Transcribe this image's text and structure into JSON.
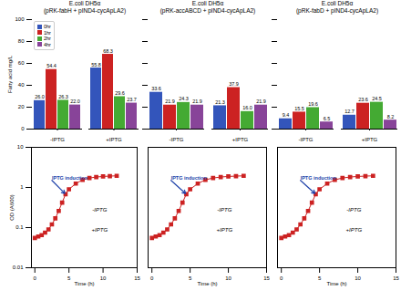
{
  "chart_data": [
    {
      "type": "bar",
      "title": "E.coli DH5α\n(pRK-fabH + pIND4-cycApLA2)",
      "categories": [
        "-IPTG",
        "+IPTG"
      ],
      "series": [
        {
          "name": "0hr",
          "color": "#3355bb",
          "values": [
            26.0,
            55.8
          ],
          "value_labels": [
            "26.0",
            "55.8"
          ]
        },
        {
          "name": "1hr",
          "color": "#cc2222",
          "values": [
            54.4,
            68.3
          ],
          "value_labels": [
            "54.4",
            "68.3"
          ]
        },
        {
          "name": "2hr",
          "color": "#44aa33",
          "values": [
            26.3,
            29.6
          ],
          "value_labels": [
            "26.3",
            "29.6"
          ]
        },
        {
          "name": "4hr",
          "color": "#884499",
          "values": [
            22.0,
            23.7
          ],
          "value_labels": [
            "22.0",
            "23.7"
          ]
        }
      ],
      "y_label": "Fatty acid mg/L",
      "ylim": [
        0,
        100
      ],
      "yticks": [
        0,
        20,
        40,
        60,
        80,
        100
      ],
      "data_labels": true,
      "legend": "upper left"
    },
    {
      "type": "bar",
      "title": "E.coli DH5α\n(pRK-accABCD + pIND4-cycApLA2)",
      "categories": [
        "-IPTG",
        "+IPTG"
      ],
      "series": [
        {
          "name": "0hr",
          "color": "#3355bb",
          "values": [
            33.6,
            21.3
          ],
          "value_labels": [
            "33.6",
            "21.3"
          ]
        },
        {
          "name": "1hr",
          "color": "#cc2222",
          "values": [
            21.9,
            37.9
          ],
          "value_labels": [
            "21.9",
            "37.9"
          ]
        },
        {
          "name": "2hr",
          "color": "#44aa33",
          "values": [
            24.3,
            16.0
          ],
          "value_labels": [
            "24.3",
            "16.0"
          ]
        },
        {
          "name": "4hr",
          "color": "#884499",
          "values": [
            21.9,
            21.9
          ],
          "value_labels": [
            "21.9",
            "21.9"
          ]
        }
      ],
      "ylim": [
        0,
        100
      ],
      "yticks": [
        0,
        20,
        40,
        60,
        80,
        100
      ],
      "data_labels": true,
      "tick_labels": "x"
    },
    {
      "type": "bar",
      "title": "E.coli DH5α\n(pRK-fabD + pIND4-cycApLA2)",
      "categories": [
        "-IPTG",
        "+IPTG"
      ],
      "series": [
        {
          "name": "0hr",
          "color": "#3355bb",
          "values": [
            9.4,
            12.7
          ],
          "value_labels": [
            "9.4",
            "12.7"
          ]
        },
        {
          "name": "1hr",
          "color": "#cc2222",
          "values": [
            15.5,
            23.6
          ],
          "value_labels": [
            "15.5",
            "23.6"
          ]
        },
        {
          "name": "2hr",
          "color": "#44aa33",
          "values": [
            19.6,
            24.5
          ],
          "value_labels": [
            "19.6",
            "24.5"
          ]
        },
        {
          "name": "4hr",
          "color": "#884499",
          "values": [
            6.5,
            8.2
          ],
          "value_labels": [
            "6.5",
            "8.2"
          ]
        }
      ],
      "ylim": [
        0,
        100
      ],
      "yticks": [
        0,
        20,
        40,
        60,
        80,
        100
      ],
      "data_labels": true,
      "tick_labels": "x"
    },
    {
      "type": "line",
      "log": "y",
      "x": [
        0,
        0.5,
        1,
        1.5,
        2,
        2.5,
        3,
        3.5,
        4,
        4.5,
        5,
        6,
        7,
        8,
        9,
        10,
        11,
        12
      ],
      "values": [
        0.055,
        0.06,
        0.065,
        0.075,
        0.09,
        0.12,
        0.17,
        0.26,
        0.42,
        0.68,
        0.9,
        1.25,
        1.55,
        1.72,
        1.82,
        1.88,
        1.92,
        1.95
      ],
      "color": "#cc2222",
      "marker": "square",
      "x_label": "Time (h)",
      "y_label": "OD (A600)",
      "xlim": [
        -0.5,
        15
      ],
      "xticks": [
        0,
        5,
        10,
        15
      ],
      "ylim": [
        0.01,
        10
      ],
      "yticks": [
        0.01,
        0.1,
        1,
        10
      ],
      "annotations": [
        {
          "text": "IPTG induction",
          "x": 4.5,
          "y": 0.68,
          "text_x": 2.5,
          "text_y": 1.5,
          "color": "#2244aa"
        },
        {
          "text": "-IPTG",
          "x": 9.5,
          "y": 0.25
        },
        {
          "text": "+IPTG",
          "x": 9.5,
          "y": 0.08
        }
      ]
    },
    {
      "type": "line",
      "log": "y",
      "x": [
        0,
        0.5,
        1,
        1.5,
        2,
        2.5,
        3,
        3.5,
        4,
        4.5,
        5,
        6,
        7,
        8,
        9,
        10,
        11,
        12
      ],
      "values": [
        0.055,
        0.06,
        0.065,
        0.075,
        0.09,
        0.12,
        0.17,
        0.26,
        0.42,
        0.68,
        0.9,
        1.25,
        1.55,
        1.72,
        1.82,
        1.88,
        1.92,
        1.95
      ],
      "color": "#cc2222",
      "marker": "square",
      "x_label": "Time (h)",
      "xlim": [
        -0.5,
        15
      ],
      "xticks": [
        0,
        5,
        10,
        15
      ],
      "ylim": [
        0.01,
        10
      ],
      "yticks": [
        0.01,
        0.1,
        1,
        10
      ],
      "tick_labels": "x",
      "annotations": [
        {
          "text": "IPTG induction",
          "x": 4.5,
          "y": 0.68,
          "text_x": 2.5,
          "text_y": 1.5,
          "color": "#2244aa"
        },
        {
          "text": "-IPTG",
          "x": 9.5,
          "y": 0.25
        },
        {
          "text": "+IPTG",
          "x": 9.5,
          "y": 0.08
        }
      ]
    },
    {
      "type": "line",
      "log": "y",
      "x": [
        0,
        0.5,
        1,
        1.5,
        2,
        2.5,
        3,
        3.5,
        4,
        4.5,
        5,
        6,
        7,
        8,
        9,
        10,
        11,
        12
      ],
      "values": [
        0.055,
        0.06,
        0.065,
        0.075,
        0.09,
        0.12,
        0.17,
        0.26,
        0.42,
        0.68,
        0.9,
        1.25,
        1.55,
        1.72,
        1.82,
        1.88,
        1.92,
        1.95
      ],
      "color": "#cc2222",
      "marker": "square",
      "x_label": "Time (h)",
      "xlim": [
        -0.5,
        15
      ],
      "xticks": [
        0,
        5,
        10,
        15
      ],
      "ylim": [
        0.01,
        10
      ],
      "yticks": [
        0.01,
        0.1,
        1,
        10
      ],
      "tick_labels": "x",
      "annotations": [
        {
          "text": "IPTG induction",
          "x": 4.5,
          "y": 0.68,
          "text_x": 2.5,
          "text_y": 1.5,
          "color": "#2244aa"
        },
        {
          "text": "-IPTG",
          "x": 9.5,
          "y": 0.25
        },
        {
          "text": "+IPTG",
          "x": 9.5,
          "y": 0.08
        }
      ]
    }
  ]
}
